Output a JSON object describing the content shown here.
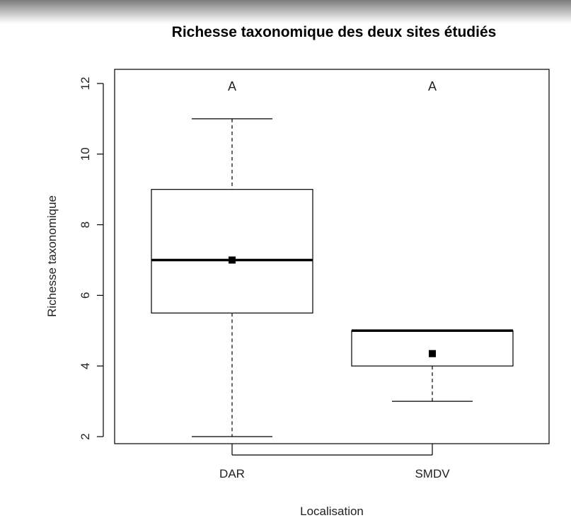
{
  "chart_data": {
    "type": "boxplot",
    "title": "Richesse taxonomique des deux sites étudiés",
    "xlabel": "Localisation",
    "ylabel": "Richesse taxonomique",
    "ylim": [
      1.8,
      12.4
    ],
    "yticks": [
      2,
      4,
      6,
      8,
      10,
      12
    ],
    "categories": [
      "DAR",
      "SMDV"
    ],
    "groups": [
      {
        "category": "DAR",
        "min": 2,
        "q1": 5.5,
        "median": 7,
        "q3": 9,
        "max": 11,
        "mean": 7.0,
        "letter": "A"
      },
      {
        "category": "SMDV",
        "min": 3,
        "q1": 4,
        "median": 5,
        "q3": 5,
        "max": 5,
        "mean": 4.35,
        "letter": "A"
      }
    ],
    "grid": false,
    "legend": "none"
  }
}
